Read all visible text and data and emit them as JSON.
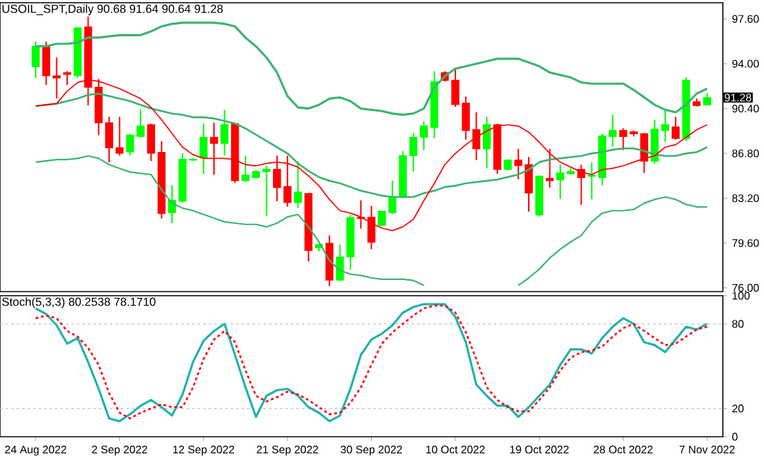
{
  "chart_data": [
    {
      "type": "candlestick",
      "title": "USOIL_SPT,Daily  90.68 91.64 90.64 91.28",
      "categories": [
        null,
        null,
        null,
        null,
        null,
        null,
        null,
        null,
        null,
        null,
        null,
        null,
        null,
        null,
        null,
        null,
        null,
        null,
        null,
        null,
        null,
        null,
        null,
        null,
        null,
        null,
        null,
        null,
        null,
        null,
        null,
        null,
        null,
        null,
        null,
        null,
        null,
        null,
        null,
        null,
        null,
        null,
        null,
        null,
        null,
        null,
        null,
        null,
        null,
        null,
        null,
        null,
        null,
        null,
        null,
        null,
        null,
        null,
        null,
        null,
        null,
        null,
        null,
        null,
        null
      ],
      "ohlc": [
        [
          93.77,
          95.78,
          92.86,
          95.41
        ],
        [
          95.41,
          95.78,
          92.3,
          93.03
        ],
        [
          93.03,
          94.5,
          91.2,
          92.86
        ],
        [
          93.29,
          93.4,
          92.3,
          93.14
        ],
        [
          93.03,
          96.95,
          92.86,
          96.88
        ],
        [
          96.95,
          97.79,
          90.65,
          92.12
        ],
        [
          92.12,
          92.78,
          88.27,
          89.26
        ],
        [
          89.26,
          89.74,
          86.07,
          87.25
        ],
        [
          87.25,
          89.74,
          86.62,
          86.81
        ],
        [
          86.92,
          88.38,
          86.62,
          88.27
        ],
        [
          88.16,
          90.36,
          88.09,
          89.0
        ],
        [
          89.11,
          89.19,
          86.18,
          86.81
        ],
        [
          86.88,
          87.79,
          81.57,
          81.97
        ],
        [
          82.04,
          84.24,
          81.2,
          83.03
        ],
        [
          82.96,
          86.81,
          82.85,
          86.33
        ],
        [
          86.26,
          86.4,
          86.18,
          86.33
        ],
        [
          86.44,
          89.19,
          85.16,
          88.09
        ],
        [
          88.09,
          89.26,
          85.08,
          87.61
        ],
        [
          87.61,
          90.29,
          86.62,
          89.11
        ],
        [
          89.19,
          89.26,
          84.42,
          84.61
        ],
        [
          84.61,
          86.62,
          84.5,
          85.05
        ],
        [
          84.86,
          85.45,
          84.79,
          85.34
        ],
        [
          85.34,
          85.82,
          81.79,
          85.52
        ],
        [
          85.52,
          86.62,
          82.96,
          84.06
        ],
        [
          84.13,
          86.62,
          82.52,
          82.85
        ],
        [
          82.85,
          86.15,
          82.41,
          83.69
        ],
        [
          83.58,
          83.62,
          78.12,
          79.0
        ],
        [
          79.22,
          79.55,
          78.93,
          79.48
        ],
        [
          79.59,
          80.21,
          76.15,
          76.62
        ],
        [
          76.62,
          79.48,
          76.55,
          78.49
        ],
        [
          78.49,
          81.86,
          77.47,
          81.64
        ],
        [
          81.68,
          83.03,
          80.76,
          81.57
        ],
        [
          81.68,
          82.59,
          79.11,
          79.66
        ],
        [
          81.02,
          82.15,
          80.95,
          82.15
        ],
        [
          82.04,
          84.61,
          81.93,
          83.33
        ],
        [
          83.25,
          86.99,
          83.22,
          86.62
        ],
        [
          86.62,
          88.45,
          85.34,
          88.09
        ],
        [
          88.09,
          89.37,
          87.06,
          89.0
        ],
        [
          88.89,
          93.4,
          88.01,
          92.56
        ],
        [
          93.29,
          93.4,
          92.56,
          92.67
        ],
        [
          92.67,
          93.66,
          90.54,
          90.73
        ],
        [
          90.84,
          91.38,
          87.9,
          88.64
        ],
        [
          88.71,
          90.1,
          86.26,
          87.17
        ],
        [
          87.17,
          89.74,
          85.6,
          89.11
        ],
        [
          89.11,
          89.19,
          85.16,
          85.52
        ],
        [
          85.52,
          86.33,
          85.45,
          86.26
        ],
        [
          86.26,
          87.17,
          84.72,
          85.82
        ],
        [
          85.89,
          86.51,
          82.12,
          83.62
        ],
        [
          81.86,
          85.01,
          81.71,
          84.97
        ],
        [
          84.79,
          87.17,
          84.06,
          84.61
        ],
        [
          84.68,
          85.89,
          83.14,
          85.23
        ],
        [
          85.16,
          85.6,
          85.12,
          85.34
        ],
        [
          85.52,
          85.89,
          82.67,
          84.86
        ],
        [
          84.97,
          86.07,
          83.11,
          85.05
        ],
        [
          84.86,
          88.38,
          84.24,
          88.2
        ],
        [
          88.16,
          89.92,
          87.36,
          88.64
        ],
        [
          88.64,
          88.82,
          87.06,
          88.16
        ],
        [
          88.53,
          88.64,
          88.16,
          88.38
        ],
        [
          88.38,
          88.45,
          85.23,
          86.18
        ],
        [
          86.18,
          89.48,
          85.96,
          88.75
        ],
        [
          88.64,
          90.36,
          87.72,
          89.11
        ],
        [
          88.93,
          89.74,
          87.9,
          88.01
        ],
        [
          88.01,
          92.92,
          87.79,
          92.67
        ],
        [
          90.95,
          91.2,
          90.58,
          90.65
        ],
        [
          90.68,
          91.64,
          90.64,
          91.28
        ]
      ],
      "colors": [
        "#00ff00",
        "#ff0000",
        "#ff0000",
        "#ff0000",
        "#00ff00",
        "#ff0000",
        "#ff0000",
        "#ff0000",
        "#ff0000",
        "#00ff00",
        "#00ff00",
        "#ff0000",
        "#ff0000",
        "#00ff00",
        "#00ff00",
        "#00ff00",
        "#00ff00",
        "#ff0000",
        "#00ff00",
        "#ff0000",
        "#00ff00",
        "#00ff00",
        "#00ff00",
        "#ff0000",
        "#ff0000",
        "#00ff00",
        "#ff0000",
        "#00ff00",
        "#ff0000",
        "#00ff00",
        "#00ff00",
        "#ff0000",
        "#ff0000",
        "#00ff00",
        "#00ff00",
        "#00ff00",
        "#00ff00",
        "#00ff00",
        "#00ff00",
        "#ff0000",
        "#ff0000",
        "#ff0000",
        "#ff0000",
        "#00ff00",
        "#ff0000",
        "#00ff00",
        "#ff0000",
        "#ff0000",
        "#00ff00",
        "#ff0000",
        "#00ff00",
        "#00ff00",
        "#ff0000",
        "#00ff00",
        "#00ff00",
        "#00ff00",
        "#ff0000",
        "#ff0000",
        "#ff0000",
        "#00ff00",
        "#00ff00",
        "#ff0000",
        "#00ff00",
        "#ff0000",
        "#00ff00"
      ],
      "series": [
        {
          "type": "line",
          "color": "#3cb371",
          "values": [
            95.4,
            95.4,
            95.6,
            95.6,
            95.7,
            96.1,
            96.1,
            96.2,
            96.3,
            96.3,
            96.3,
            96.6,
            97.0,
            97.2,
            97.3,
            97.3,
            97.3,
            97.3,
            97.2,
            97.0,
            96.1,
            95.4,
            94.5,
            93.3,
            91.4,
            90.5,
            90.4,
            90.7,
            91.2,
            91.3,
            91.0,
            90.4,
            90.3,
            90.2,
            90.0,
            89.9,
            90.0,
            90.4,
            92.1,
            93.0,
            93.6,
            93.8,
            94.0,
            94.2,
            94.4,
            94.4,
            94.4,
            94.1,
            93.8,
            93.3,
            93.1,
            92.9,
            92.5,
            92.4,
            92.4,
            92.4,
            92.4,
            91.9,
            91.3,
            90.7,
            90.3,
            90.1,
            90.7,
            91.6,
            92.0
          ]
        },
        {
          "type": "line",
          "color": "#3cb371",
          "values": [
            90.6,
            90.7,
            90.8,
            91.0,
            91.2,
            91.5,
            91.6,
            91.4,
            91.2,
            91.0,
            90.7,
            90.4,
            90.2,
            90.0,
            89.9,
            89.7,
            89.7,
            89.6,
            89.4,
            89.2,
            88.8,
            88.3,
            87.8,
            87.3,
            86.8,
            86.0,
            85.4,
            84.9,
            84.6,
            84.4,
            84.1,
            83.8,
            83.6,
            83.4,
            83.3,
            83.3,
            83.3,
            83.6,
            83.8,
            84.1,
            84.2,
            84.4,
            84.5,
            84.6,
            84.7,
            84.9,
            85.1,
            85.5,
            86.1,
            86.3,
            86.4,
            86.5,
            86.6,
            86.8,
            86.9,
            87.1,
            87.2,
            87.2,
            87.0,
            86.7,
            86.6,
            86.6,
            86.8,
            86.9,
            87.3
          ]
        },
        {
          "type": "line",
          "color": "#3cb371",
          "values": [
            86.1,
            86.2,
            86.3,
            86.3,
            86.4,
            86.6,
            86.4,
            85.9,
            85.6,
            85.3,
            85.2,
            85.1,
            83.9,
            82.8,
            82.4,
            82.2,
            81.9,
            81.6,
            81.3,
            81.2,
            81.1,
            81.1,
            80.9,
            81.2,
            81.7,
            81.9,
            80.9,
            79.7,
            78.2,
            77.4,
            77.1,
            77.0,
            76.8,
            76.7,
            76.7,
            76.7,
            76.6,
            76.2,
            null,
            null,
            null,
            null,
            null,
            null,
            null,
            null,
            76.2,
            76.8,
            77.5,
            78.4,
            79.1,
            79.7,
            80.2,
            81.3,
            82.0,
            82.2,
            82.2,
            82.3,
            82.8,
            83.1,
            83.3,
            83.1,
            82.7,
            82.5,
            82.5
          ]
        },
        {
          "type": "line",
          "color": "#ff0000",
          "values": [
            90.6,
            90.7,
            90.8,
            91.8,
            92.5,
            92.7,
            92.6,
            92.3,
            92.0,
            91.6,
            91.2,
            90.5,
            89.5,
            88.4,
            87.3,
            86.7,
            86.4,
            86.4,
            86.4,
            86.3,
            85.9,
            85.8,
            86.0,
            86.1,
            86.0,
            85.7,
            85.0,
            84.2,
            83.1,
            82.2,
            82.0,
            81.7,
            81.2,
            80.8,
            80.6,
            80.9,
            81.5,
            83.0,
            84.4,
            85.9,
            86.8,
            87.5,
            88.1,
            88.6,
            89.0,
            89.1,
            89.0,
            88.5,
            87.7,
            86.8,
            86.1,
            85.7,
            85.3,
            85.1,
            85.5,
            85.6,
            85.8,
            86.1,
            86.4,
            86.6,
            87.3,
            87.5,
            88.1,
            88.7,
            89.1
          ]
        }
      ],
      "ylim": [
        75.7,
        98.9
      ],
      "yticks": [
        {
          "value": 76.0,
          "label": "76.00"
        },
        {
          "value": 79.6,
          "label": "79.60"
        },
        {
          "value": 83.2,
          "label": "83.20"
        },
        {
          "value": 86.8,
          "label": "86.80"
        },
        {
          "value": 90.4,
          "label": "90.40"
        },
        {
          "value": 94.0,
          "label": "94.00"
        },
        {
          "value": 97.6,
          "label": "97.60"
        }
      ],
      "annotations": [
        "91.28"
      ],
      "tick_labels": "y"
    },
    {
      "type": "line",
      "title": "Stoch(5,3,3) 80.2538 78.1710",
      "categories": [
        "24 Aug 2022",
        null,
        null,
        null,
        null,
        null,
        null,
        null,
        "2 Sep 2022",
        null,
        null,
        null,
        null,
        null,
        null,
        null,
        "12 Sep 2022",
        null,
        null,
        null,
        null,
        null,
        null,
        null,
        "21 Sep 2022",
        null,
        null,
        null,
        null,
        null,
        null,
        null,
        "30 Sep 2022",
        null,
        null,
        null,
        null,
        null,
        null,
        null,
        "10 Oct 2022",
        null,
        null,
        null,
        null,
        null,
        null,
        null,
        "19 Oct 2022",
        null,
        null,
        null,
        null,
        null,
        null,
        null,
        "28 Oct 2022",
        null,
        null,
        null,
        null,
        null,
        null,
        null,
        "7 Nov 2022"
      ],
      "series": [
        {
          "color": "#20b2aa",
          "values": [
            91,
            87,
            79,
            66,
            70,
            53,
            34,
            13,
            11,
            16,
            22,
            26,
            21,
            15,
            30,
            53,
            68,
            75,
            80,
            58,
            35,
            14,
            29,
            33,
            34,
            29,
            21,
            17,
            11,
            15,
            34,
            58,
            69,
            73,
            79,
            88,
            92,
            94,
            94,
            94,
            85,
            67,
            37,
            29,
            22,
            22,
            14,
            21,
            29,
            37,
            51,
            62,
            62,
            59,
            70,
            78,
            84,
            80,
            67,
            65,
            60,
            69,
            78,
            76,
            80
          ]
        },
        {
          "color": "#ff0000",
          "line_style": "dashed",
          "values": [
            84,
            86,
            84,
            75,
            71,
            63,
            51,
            31,
            17,
            13,
            17,
            20,
            23,
            21,
            21,
            35,
            55,
            69,
            75,
            67,
            47,
            29,
            25,
            28,
            32,
            30,
            26,
            21,
            16,
            17,
            24,
            35,
            51,
            66,
            74,
            80,
            86,
            91,
            93,
            93,
            88,
            74,
            55,
            35,
            26,
            21,
            18,
            18,
            26,
            35,
            47,
            56,
            60,
            61,
            64,
            71,
            77,
            80,
            75,
            70,
            65,
            66,
            71,
            76,
            78
          ]
        }
      ],
      "ylim": [
        0,
        100
      ],
      "yticks": [
        0,
        20,
        80,
        100
      ],
      "ref_lines": [
        {
          "axis": "y",
          "value": 80,
          "color": "#c0c0c0",
          "line_style": "dashed"
        },
        {
          "axis": "y",
          "value": 20,
          "color": "#c0c0c0",
          "line_style": "dashed"
        }
      ]
    }
  ]
}
